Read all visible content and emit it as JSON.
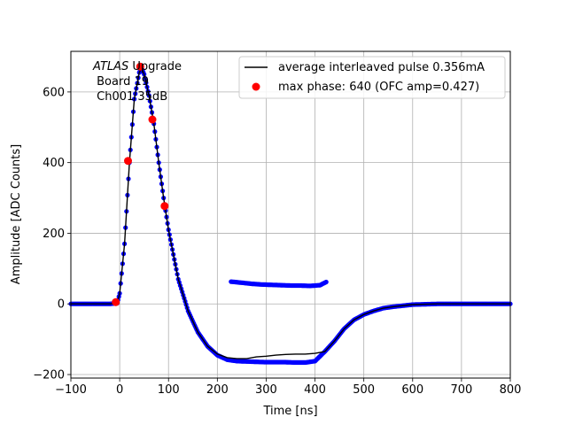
{
  "chart_data": {
    "type": "line",
    "title": "",
    "xlabel": "Time [ns]",
    "ylabel": "Amplitude [ADC Counts]",
    "xlim": [
      -100,
      800
    ],
    "ylim": [
      -210,
      715
    ],
    "xticks": [
      -100,
      0,
      100,
      200,
      300,
      400,
      500,
      600,
      700,
      800
    ],
    "yticks": [
      -200,
      0,
      200,
      400,
      600
    ],
    "grid": true,
    "legend_placement": "top-right",
    "annotation": {
      "italic_part": "ATLAS",
      "line1_rest": " Upgrade",
      "line2": " Board 19",
      "line3": " Ch001 35dB"
    },
    "series": [
      {
        "name": "average interleaved pulse 0.356mA",
        "style": "line",
        "color": "#000000",
        "x": [
          -100,
          -20,
          -5,
          0,
          10,
          20,
          30,
          40,
          45,
          50,
          60,
          70,
          80,
          90,
          100,
          120,
          140,
          160,
          180,
          200,
          220,
          240,
          260,
          280,
          300,
          320,
          340,
          360,
          380,
          400,
          420,
          440,
          460,
          480,
          500,
          520,
          540,
          560,
          580,
          600,
          650,
          700,
          750,
          800
        ],
        "y": [
          0,
          0,
          2,
          30,
          170,
          400,
          580,
          655,
          668,
          650,
          590,
          510,
          400,
          300,
          210,
          70,
          -20,
          -80,
          -120,
          -142,
          -152,
          -155,
          -155,
          -150,
          -148,
          -145,
          -143,
          -142,
          -142,
          -140,
          -135,
          -105,
          -70,
          -45,
          -30,
          -20,
          -12,
          -8,
          -5,
          -2,
          0,
          0,
          0,
          0
        ]
      },
      {
        "name": "",
        "style": "markers",
        "color": "#0000ff",
        "x": [
          -100,
          -20,
          -5,
          0,
          10,
          20,
          30,
          40,
          45,
          50,
          60,
          70,
          80,
          90,
          100,
          120,
          140,
          160,
          180,
          200,
          220,
          240,
          260,
          280,
          300,
          320,
          340,
          360,
          380,
          400,
          420,
          440,
          460,
          480,
          500,
          520,
          540,
          560,
          580,
          600,
          650,
          700,
          750,
          800
        ],
        "y": [
          0,
          0,
          2,
          30,
          170,
          400,
          580,
          655,
          668,
          650,
          590,
          510,
          400,
          300,
          210,
          70,
          -20,
          -80,
          -120,
          -145,
          -158,
          -162,
          -163,
          -164,
          -165,
          -165,
          -165,
          -166,
          -166,
          -162,
          -135,
          -105,
          -70,
          -45,
          -30,
          -20,
          -12,
          -8,
          -5,
          -2,
          0,
          0,
          0,
          0
        ]
      },
      {
        "name": "",
        "style": "markers",
        "color": "#0000ff",
        "x": [
          228,
          250,
          270,
          290,
          310,
          330,
          350,
          370,
          390,
          410,
          423
        ],
        "y": [
          63,
          60,
          57,
          55,
          54,
          53,
          52,
          52,
          51,
          53,
          62
        ]
      },
      {
        "name": "max phase: 640 (OFC amp=0.427)",
        "style": "markers",
        "color": "#ff0000",
        "x": [
          -8,
          17,
          42,
          67,
          92
        ],
        "y": [
          5,
          405,
          672,
          522,
          277
        ]
      }
    ]
  }
}
